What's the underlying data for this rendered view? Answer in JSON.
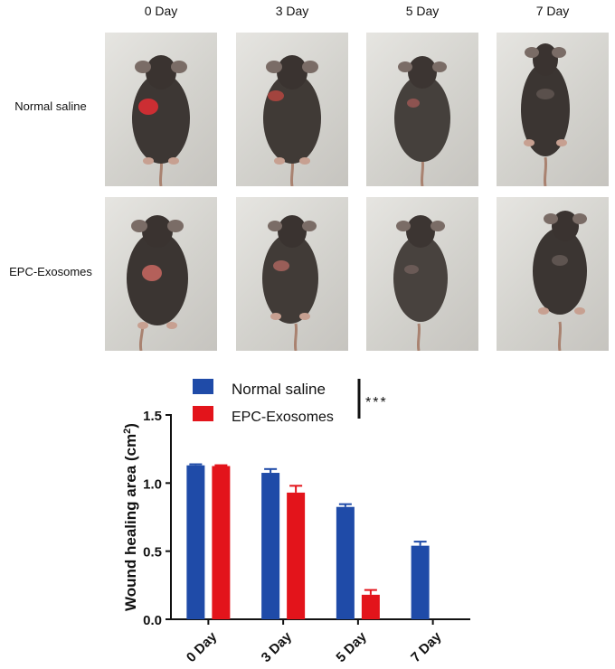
{
  "panel_a": {
    "column_labels": [
      "0 Day",
      "3 Day",
      "5 Day",
      "7 Day"
    ],
    "row_labels": [
      "Normal saline",
      "EPC-Exosomes"
    ],
    "photo_alt": "Dorsal view photograph of a mouse with a back wound"
  },
  "chart_data": {
    "type": "bar",
    "title": "",
    "xlabel": "",
    "ylabel": "Wound healing area (cm",
    "ylabel_sup": "2",
    "ylabel_close": ")",
    "categories": [
      "0 Day",
      "3 Day",
      "5 Day",
      "7 Day"
    ],
    "series": [
      {
        "name": "Normal saline",
        "values": [
          1.13,
          1.075,
          0.825,
          0.54
        ],
        "errors": [
          0.008,
          0.028,
          0.02,
          0.03
        ],
        "color": "#1f4ba8"
      },
      {
        "name": "EPC-Exosomes",
        "values": [
          1.125,
          0.93,
          0.18,
          0.0
        ],
        "errors": [
          0.006,
          0.05,
          0.035,
          0.0
        ],
        "color": "#e3141b"
      }
    ],
    "ylim": [
      0,
      1.5
    ],
    "yticks": [
      "0.0",
      "0.5",
      "1.0",
      "1.5"
    ],
    "ytick_values": [
      0,
      0.5,
      1.0,
      1.5
    ],
    "legend_position": "top",
    "significance": "***",
    "grid": false
  }
}
